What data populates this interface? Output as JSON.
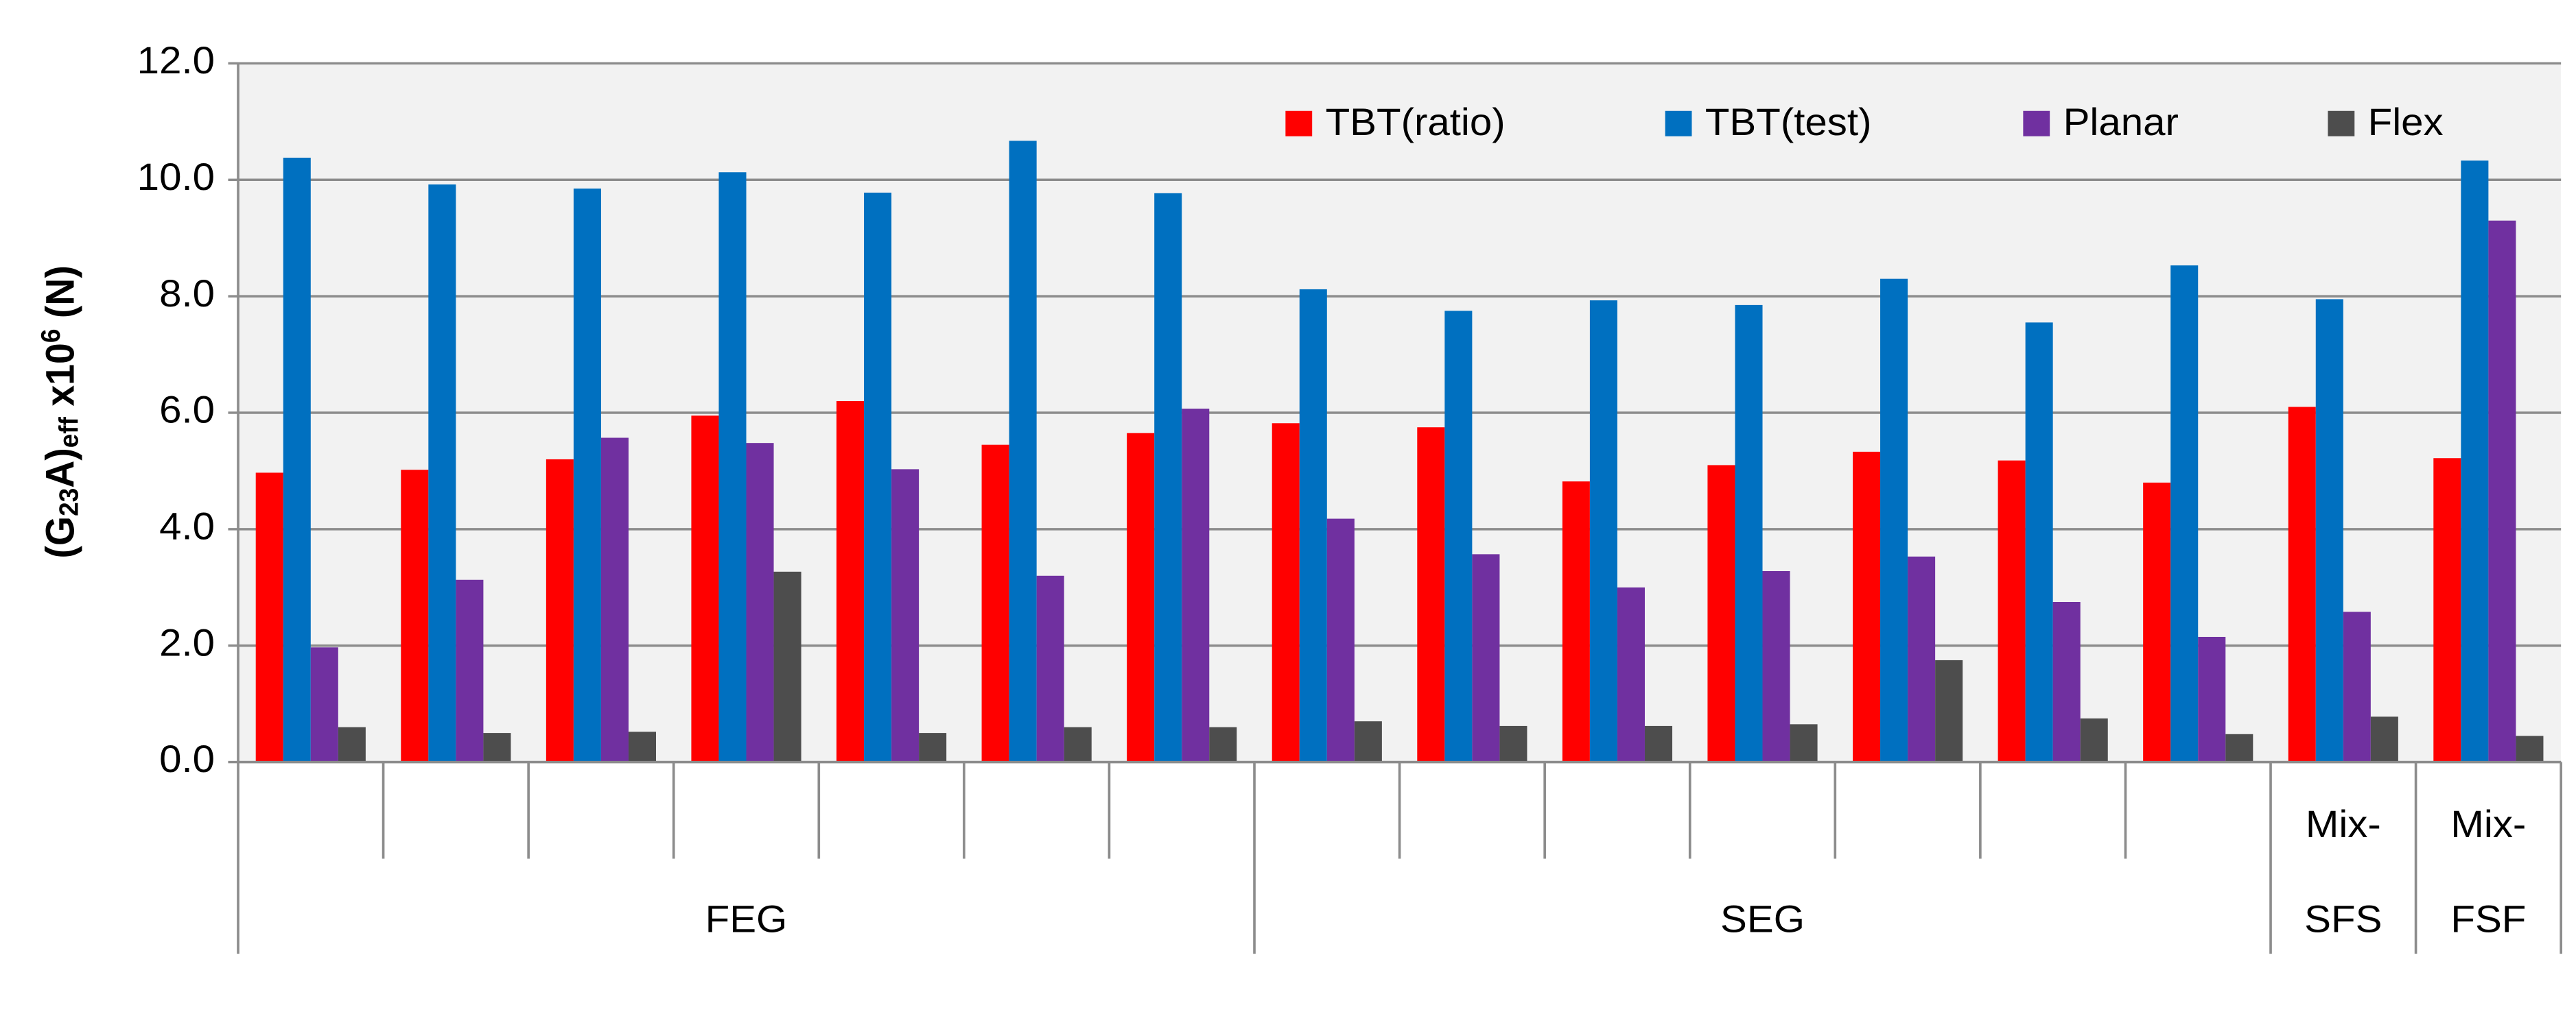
{
  "chart_data": {
    "type": "bar",
    "ylabel_parts": [
      "(G",
      "23",
      "A)",
      "eff",
      " x10",
      "6",
      " (N)"
    ],
    "categories": [
      null,
      null,
      null,
      null,
      null,
      null,
      null,
      null,
      null,
      null,
      null,
      null,
      null,
      null,
      "Mix-",
      "Mix-"
    ],
    "groups": [
      {
        "name": "FEG",
        "count": 7
      },
      {
        "name": "SEG",
        "count": 7
      },
      {
        "name": "SFS",
        "count": 1
      },
      {
        "name": "FSF",
        "count": 1
      }
    ],
    "series": [
      {
        "name": "TBT(ratio)",
        "color": "#ff0000",
        "values": [
          4.97,
          5.02,
          5.2,
          5.95,
          6.2,
          5.45,
          5.65,
          5.82,
          5.75,
          4.82,
          5.1,
          5.33,
          5.18,
          4.8,
          6.1,
          5.22
        ]
      },
      {
        "name": "TBT(test)",
        "color": "#0070c0",
        "values": [
          10.38,
          9.92,
          9.85,
          10.13,
          9.78,
          10.67,
          9.77,
          8.12,
          7.75,
          7.93,
          7.85,
          8.3,
          7.55,
          8.53,
          7.95,
          10.33
        ]
      },
      {
        "name": "Planar",
        "color": "#7030a0",
        "values": [
          1.97,
          3.13,
          5.57,
          5.48,
          5.03,
          3.2,
          6.07,
          4.18,
          3.57,
          3.0,
          3.28,
          3.53,
          2.75,
          2.15,
          2.58,
          9.3
        ]
      },
      {
        "name": "Flex",
        "color": "#4d4d4d",
        "values": [
          0.6,
          0.5,
          0.52,
          3.27,
          0.5,
          0.6,
          0.6,
          0.7,
          0.62,
          0.62,
          0.65,
          1.75,
          0.75,
          0.48,
          0.78,
          0.45
        ]
      }
    ],
    "ylim": [
      0,
      12
    ],
    "yticks": [
      {
        "value": 0,
        "label": "0.0"
      },
      {
        "value": 2,
        "label": "2.0"
      },
      {
        "value": 4,
        "label": "4.0"
      },
      {
        "value": 6,
        "label": "6.0"
      },
      {
        "value": 8,
        "label": "8.0"
      },
      {
        "value": 10,
        "label": "10.0"
      },
      {
        "value": 12,
        "label": "12.0"
      }
    ],
    "grid": true,
    "legend": "top"
  }
}
